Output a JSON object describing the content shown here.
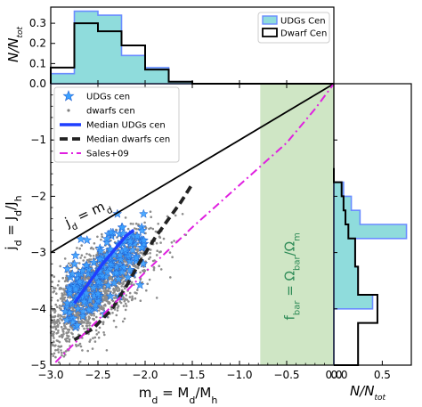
{
  "chart_data": [
    {
      "id": "main",
      "type": "scatter",
      "xlabel": "mₓ = Mₓ/Mₕ",
      "xlabel_parts": {
        "a": "m",
        "a_sub": "d",
        "eq": " = M",
        "b_sub": "d",
        "slash": "/M",
        "c_sub": "h"
      },
      "ylabel_parts": {
        "a": "j",
        "a_sub": "d",
        "eq": " = J",
        "b_sub": "d",
        "slash": "/J",
        "c_sub": "h"
      },
      "xlim": [
        -3.0,
        0.0
      ],
      "ylim": [
        -5.0,
        0.0
      ],
      "xticks": [
        -3.0,
        -2.5,
        -2.0,
        -1.5,
        -1.0,
        -0.5,
        0.0
      ],
      "xtick_labels": [
        "−3.0",
        "−2.5",
        "−2.0",
        "−1.5",
        "−1.0",
        "−0.5",
        "0.0"
      ],
      "yticks": [
        -5,
        -4,
        -3,
        -2,
        -1
      ],
      "ytick_labels": [
        "−5",
        "−4",
        "−3",
        "−2",
        "−1"
      ],
      "shaded_band": {
        "xmin": -0.78,
        "xmax": 0.0,
        "color": "#cfe6c5",
        "label_parts": {
          "a": "f",
          "a_sub": "bar",
          "eq": " = Ω",
          "b_sub": "bar",
          "slash": "/Ω",
          "c_sub": "m"
        },
        "label_color": "#2e8b57"
      },
      "one_to_one": {
        "label_parts": {
          "a": "j",
          "a_sub": "d",
          "eq": " = m",
          "b_sub": "d"
        },
        "x": [
          -3.0,
          0.0
        ],
        "y": [
          -3.0,
          0.0
        ],
        "color": "#000000"
      },
      "legend": {
        "position": "upper-left",
        "entries": [
          {
            "label": "UDGs cen",
            "marker": "star",
            "color": "#3aa0ff"
          },
          {
            "label": "dwarfs cen",
            "marker": "dot",
            "color": "#808080"
          },
          {
            "label": "Median UDGs cen",
            "marker": "line",
            "color": "#1f3fff"
          },
          {
            "label": "Median dwarfs cen",
            "marker": "dashed",
            "color": "#222222"
          },
          {
            "label": "Sales+09",
            "marker": "dashdot",
            "color": "#e020e0"
          }
        ]
      },
      "series": [
        {
          "name": "Median UDGs cen",
          "style": "solid",
          "color": "#1f3fff",
          "x": [
            -2.75,
            -2.6,
            -2.45,
            -2.3,
            -2.2,
            -2.12
          ],
          "y": [
            -3.9,
            -3.55,
            -3.2,
            -2.9,
            -2.7,
            -2.6
          ]
        },
        {
          "name": "Median dwarfs cen",
          "style": "dashed",
          "color": "#222222",
          "x": [
            -2.75,
            -2.55,
            -2.35,
            -2.2,
            -2.05,
            -1.9,
            -1.75,
            -1.62,
            -1.5
          ],
          "y": [
            -4.55,
            -4.35,
            -4.0,
            -3.6,
            -3.15,
            -2.75,
            -2.4,
            -2.1,
            -1.78
          ]
        },
        {
          "name": "Sales+09",
          "style": "dashdot",
          "color": "#e020e0",
          "x": [
            -2.95,
            -2.5,
            -2.0,
            -1.5,
            -1.0,
            -0.5,
            -0.2,
            0.0
          ],
          "y": [
            -4.95,
            -4.2,
            -3.35,
            -2.55,
            -1.8,
            -1.05,
            -0.45,
            0.0
          ]
        }
      ],
      "scatter_dwarfs": {
        "center_x": [
          -3.0,
          -1.2
        ],
        "slope": 1.15,
        "intercept": -0.75,
        "scatter_y": 0.35,
        "color": "#8c8c8c"
      },
      "scatter_udgs": {
        "x_range": [
          -2.85,
          -2.0
        ],
        "slope": 1.45,
        "intercept": 0.25,
        "scatter_y": 0.32,
        "color": "#3aa0ff"
      }
    },
    {
      "id": "top_hist",
      "type": "bar",
      "ylabel": "N/N",
      "ylabel_sub": "tot",
      "ylim": [
        0.0,
        0.38
      ],
      "yticks": [
        0.0,
        0.1,
        0.2,
        0.3
      ],
      "ytick_labels": [
        "0.0",
        "0.1",
        "0.2",
        "0.3"
      ],
      "bin_edges": [
        -3.0,
        -2.75,
        -2.5,
        -2.25,
        -2.0,
        -1.75,
        -1.5,
        -1.25,
        -1.0,
        -0.75,
        -0.5,
        -0.25,
        0.0
      ],
      "legend": {
        "position": "upper-right",
        "entries": [
          {
            "label": "UDGs Cen",
            "style": "filled",
            "color": "#8fdcdc",
            "edge": "#6a8cff"
          },
          {
            "label": "Dwarf Cen",
            "style": "step",
            "color": "#000000"
          }
        ]
      },
      "series": [
        {
          "name": "UDGs Cen",
          "values": [
            0.05,
            0.36,
            0.34,
            0.14,
            0.08,
            0.01,
            0,
            0,
            0,
            0,
            0,
            0
          ]
        },
        {
          "name": "Dwarf Cen",
          "values": [
            0.08,
            0.3,
            0.26,
            0.19,
            0.07,
            0.01,
            0,
            0,
            0,
            0,
            0,
            0
          ]
        }
      ]
    },
    {
      "id": "right_hist",
      "type": "bar",
      "orientation": "horizontal",
      "xlabel": "N/N",
      "xlabel_sub": "tot",
      "xlim": [
        0.0,
        0.8
      ],
      "xticks": [
        0.0,
        0.5
      ],
      "xtick_labels": [
        "0.0",
        "0.5"
      ],
      "bin_edges": [
        -5.0,
        -4.75,
        -4.5,
        -4.25,
        -4.0,
        -3.75,
        -3.5,
        -3.25,
        -3.0,
        -2.75,
        -2.5,
        -2.25,
        -2.0,
        -1.75,
        -1.5
      ],
      "series": [
        {
          "name": "UDGs Cen",
          "values": [
            0,
            0,
            0,
            0,
            0.4,
            0.25,
            0.25,
            0.22,
            0.22,
            0.75,
            0.27,
            0.18,
            0.1,
            0
          ]
        },
        {
          "name": "Dwarf Cen",
          "values": [
            0.25,
            0.25,
            0.25,
            0.45,
            0.45,
            0.25,
            0.25,
            0.22,
            0.22,
            0.15,
            0.12,
            0.1,
            0.08,
            0
          ]
        }
      ]
    }
  ]
}
